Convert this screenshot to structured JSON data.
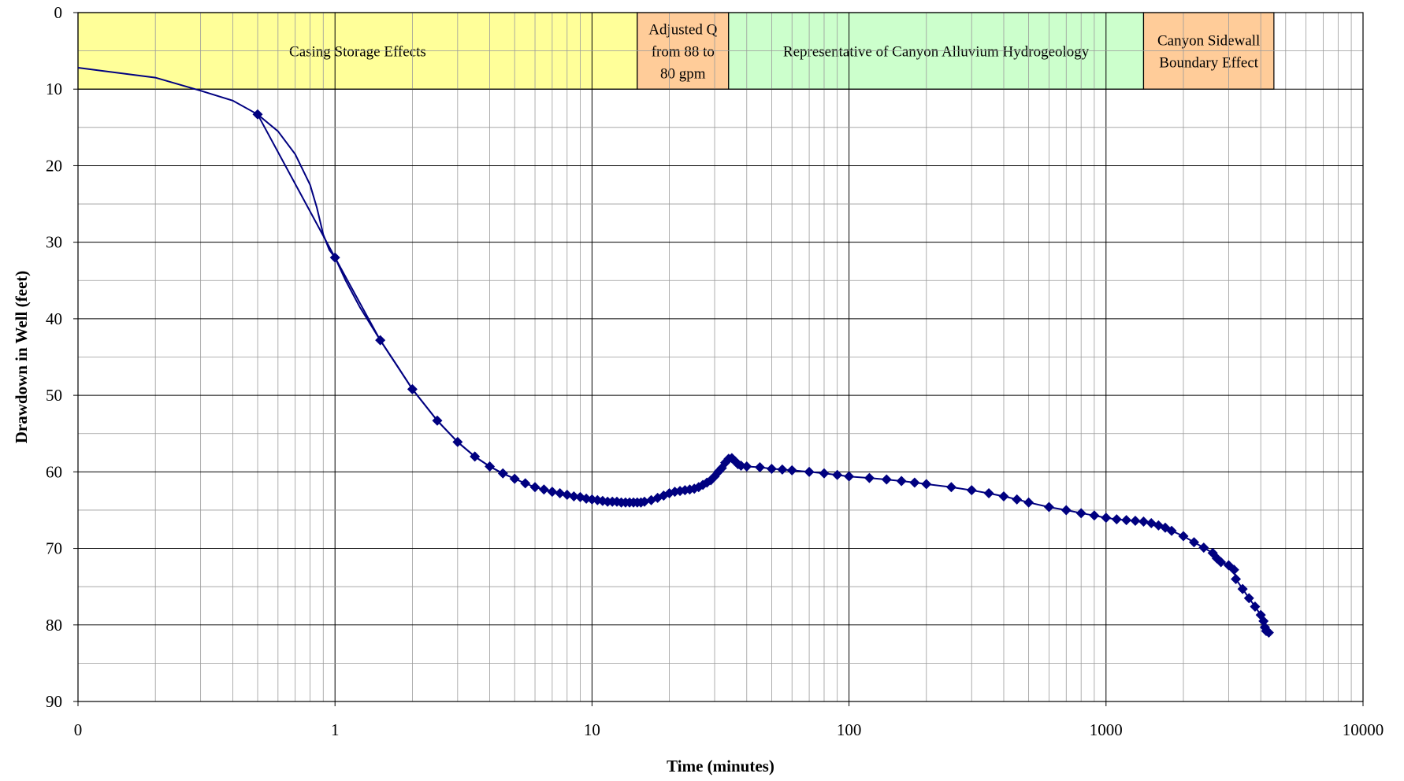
{
  "chart_data": {
    "type": "scatter",
    "x_scale": "log",
    "x_range": [
      0.1,
      10000
    ],
    "y_range": [
      0,
      90
    ],
    "y_inverted": true,
    "xlabel": "Time (minutes)",
    "ylabel": "Drawdown in Well (feet)",
    "x_tick_labels": [
      "0",
      "1",
      "10",
      "100",
      "1000",
      "10000"
    ],
    "y_tick_labels": [
      "0",
      "10",
      "20",
      "30",
      "40",
      "50",
      "60",
      "70",
      "80",
      "90"
    ],
    "grid": true,
    "series_color": "#000080",
    "zones": [
      {
        "label": [
          "Casing Storage Effects"
        ],
        "x_from": 0.1,
        "x_to": 15,
        "color": "#FFFF99"
      },
      {
        "label": [
          "Adjusted Q",
          "from 88 to",
          "80 gpm"
        ],
        "x_from": 15,
        "x_to": 34,
        "color": "#FFCC99"
      },
      {
        "label": [
          "Representative of Canyon Alluvium Hydrogeology"
        ],
        "x_from": 34,
        "x_to": 1400,
        "color": "#CCFFCC"
      },
      {
        "label": [
          "Canyon Sidewall",
          "Boundary Effect"
        ],
        "x_from": 1400,
        "x_to": 4500,
        "color": "#FFCC99"
      }
    ],
    "curve": [
      [
        0.1,
        7.2
      ],
      [
        0.2,
        8.5
      ],
      [
        0.3,
        10.2
      ],
      [
        0.4,
        11.5
      ],
      [
        0.5,
        13.3
      ],
      [
        0.6,
        15.5
      ],
      [
        0.7,
        18.5
      ],
      [
        0.8,
        22.5
      ],
      [
        0.85,
        25.5
      ],
      [
        0.9,
        29
      ],
      [
        0.95,
        31
      ],
      [
        1,
        32
      ],
      [
        1.1,
        35
      ],
      [
        1.25,
        38.5
      ],
      [
        1.5,
        42.8
      ],
      [
        1.75,
        46.2
      ],
      [
        2,
        49.2
      ],
      [
        2.5,
        53.3
      ],
      [
        3,
        56.1
      ],
      [
        3.5,
        58
      ],
      [
        4,
        59.3
      ],
      [
        4.5,
        60.2
      ],
      [
        5,
        60.9
      ]
    ],
    "points": [
      [
        0.5,
        13.3
      ],
      [
        1,
        32
      ],
      [
        1.5,
        42.8
      ],
      [
        2,
        49.2
      ],
      [
        2.5,
        53.3
      ],
      [
        3,
        56.1
      ],
      [
        3.5,
        58
      ],
      [
        4,
        59.3
      ],
      [
        4.5,
        60.2
      ],
      [
        5,
        60.9
      ],
      [
        5.5,
        61.5
      ],
      [
        6,
        62
      ],
      [
        6.5,
        62.3
      ],
      [
        7,
        62.6
      ],
      [
        7.5,
        62.8
      ],
      [
        8,
        63
      ],
      [
        8.5,
        63.2
      ],
      [
        9,
        63.3
      ],
      [
        9.5,
        63.5
      ],
      [
        10,
        63.6
      ],
      [
        10.5,
        63.7
      ],
      [
        11,
        63.8
      ],
      [
        11.5,
        63.9
      ],
      [
        12,
        63.9
      ],
      [
        12.5,
        63.9
      ],
      [
        13,
        64
      ],
      [
        13.5,
        64
      ],
      [
        14,
        64
      ],
      [
        14.5,
        64
      ],
      [
        15,
        64
      ],
      [
        15.5,
        64
      ],
      [
        16,
        63.9
      ],
      [
        17,
        63.7
      ],
      [
        18,
        63.4
      ],
      [
        19,
        63.1
      ],
      [
        20,
        62.8
      ],
      [
        21,
        62.6
      ],
      [
        22,
        62.5
      ],
      [
        23,
        62.4
      ],
      [
        24,
        62.3
      ],
      [
        25,
        62.2
      ],
      [
        26,
        62
      ],
      [
        27,
        61.7
      ],
      [
        28,
        61.4
      ],
      [
        29,
        61.1
      ],
      [
        30,
        60.6
      ],
      [
        31,
        60
      ],
      [
        32,
        59.5
      ],
      [
        33,
        58.8
      ],
      [
        34,
        58.3
      ],
      [
        35,
        58.2
      ],
      [
        36,
        58.6
      ],
      [
        37,
        59
      ],
      [
        38,
        59.2
      ],
      [
        40,
        59.3
      ],
      [
        45,
        59.4
      ],
      [
        50,
        59.6
      ],
      [
        55,
        59.7
      ],
      [
        60,
        59.8
      ],
      [
        70,
        60
      ],
      [
        80,
        60.2
      ],
      [
        90,
        60.4
      ],
      [
        100,
        60.6
      ],
      [
        120,
        60.8
      ],
      [
        140,
        61
      ],
      [
        160,
        61.2
      ],
      [
        180,
        61.4
      ],
      [
        200,
        61.6
      ],
      [
        250,
        62
      ],
      [
        300,
        62.4
      ],
      [
        350,
        62.8
      ],
      [
        400,
        63.2
      ],
      [
        450,
        63.6
      ],
      [
        500,
        64
      ],
      [
        600,
        64.6
      ],
      [
        700,
        65
      ],
      [
        800,
        65.4
      ],
      [
        900,
        65.7
      ],
      [
        1000,
        66
      ],
      [
        1100,
        66.2
      ],
      [
        1200,
        66.3
      ],
      [
        1300,
        66.4
      ],
      [
        1400,
        66.5
      ],
      [
        1500,
        66.7
      ],
      [
        1600,
        67
      ],
      [
        1700,
        67.3
      ],
      [
        1800,
        67.7
      ],
      [
        2000,
        68.4
      ],
      [
        2200,
        69.2
      ],
      [
        2400,
        69.9
      ],
      [
        2600,
        70.6
      ],
      [
        2700,
        71.3
      ],
      [
        2800,
        71.8
      ],
      [
        3000,
        72.2
      ],
      [
        3150,
        72.8
      ],
      [
        3200,
        74
      ],
      [
        3400,
        75.3
      ],
      [
        3600,
        76.5
      ],
      [
        3800,
        77.6
      ],
      [
        4000,
        78.7
      ],
      [
        4100,
        79.5
      ],
      [
        4150,
        80.3
      ],
      [
        4200,
        80.8
      ],
      [
        4300,
        81
      ]
    ]
  }
}
